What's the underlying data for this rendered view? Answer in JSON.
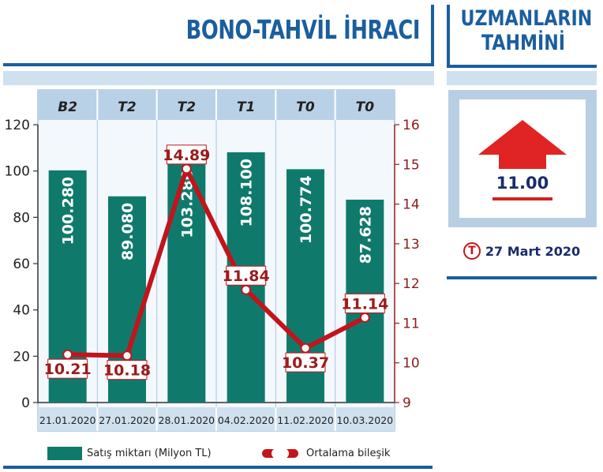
{
  "title": "BONO-TAHVİL İHRACI",
  "forecast": {
    "title_line1": "UZMANLARIN",
    "title_line2": "TAHMİNİ",
    "value": "11.00",
    "direction_icon": "up-arrow-icon",
    "logo_letter": "T",
    "date": "27 Mart 2020"
  },
  "chart_data": {
    "type": "bar",
    "categories": [
      "21.01.2020",
      "27.01.2020",
      "28.01.2020",
      "04.02.2020",
      "11.02.2020",
      "10.03.2020"
    ],
    "top_labels": [
      "B2",
      "T2",
      "T2",
      "T1",
      "T0",
      "T0"
    ],
    "series": [
      {
        "name": "Satış miktarı (Milyon TL)",
        "type": "bar",
        "axis": "left",
        "values": [
          100.28,
          89.08,
          103.28,
          108.1,
          100.774,
          87.628
        ],
        "labels": [
          "100.280",
          "89.080",
          "103.280",
          "108.100",
          "100.774",
          "87.628"
        ],
        "color": "#0f7a6c"
      },
      {
        "name": "Ortalama bileşik",
        "type": "line",
        "axis": "right",
        "values": [
          10.21,
          10.18,
          14.89,
          11.84,
          10.37,
          11.14
        ],
        "labels": [
          "10.21",
          "10.18",
          "14.89",
          "11.84",
          "10.37",
          "11.14"
        ],
        "color": "#c2141c"
      }
    ],
    "left_axis": {
      "ylim": [
        0,
        120
      ],
      "ticks": [
        0,
        20,
        40,
        60,
        80,
        100,
        120
      ]
    },
    "right_axis": {
      "ylim": [
        9,
        16
      ],
      "ticks": [
        9,
        10,
        11,
        12,
        13,
        14,
        15,
        16
      ]
    },
    "grid": false,
    "legend_position": "bottom"
  },
  "colors": {
    "brand_blue": "#1a5e9e",
    "bar_green": "#0f7a6c",
    "line_red": "#c2141c",
    "header_band": "#b9d1e7"
  }
}
